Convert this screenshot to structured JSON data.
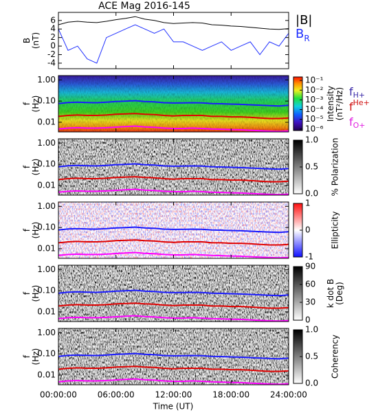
{
  "title": "ACE Mag 2016-145",
  "x_axis": {
    "label": "Time (UT)",
    "xlim": [
      0,
      24
    ],
    "xticks": [
      {
        "value": 0,
        "label": "00:00:00"
      },
      {
        "value": 6,
        "label": "06:00:00"
      },
      {
        "value": 12,
        "label": "12:00:00"
      },
      {
        "value": 18,
        "label": "18:00:00"
      },
      {
        "value": 24,
        "label": "24:00:00"
      }
    ]
  },
  "chart_data": [
    {
      "type": "line",
      "ylabel": [
        "B",
        "(nT)"
      ],
      "ylim": [
        -5.3,
        7.9
      ],
      "yticks": [
        -4,
        -2,
        0,
        2,
        4,
        6
      ],
      "x": [
        0,
        1,
        2,
        3,
        4,
        5,
        6,
        7,
        8,
        9,
        10,
        11,
        12,
        13,
        14,
        15,
        16,
        17,
        18,
        19,
        20,
        21,
        22,
        23,
        24
      ],
      "series": [
        {
          "name": "|B|",
          "color": "#000000",
          "values": [
            5.0,
            5.6,
            5.8,
            5.6,
            5.5,
            5.8,
            6.2,
            6.5,
            6.9,
            6.3,
            6.0,
            5.5,
            5.3,
            5.4,
            5.5,
            5.4,
            5.0,
            4.9,
            4.7,
            4.6,
            4.4,
            4.2,
            4.0,
            3.9,
            4.1
          ]
        },
        {
          "name": "B",
          "subscript": "R",
          "color": "#1f2fff",
          "values": [
            4,
            -1,
            0,
            -3,
            -4,
            2,
            3,
            4,
            5,
            4,
            3,
            4,
            1,
            1,
            0,
            -1,
            0,
            1,
            -1,
            0,
            1,
            -2,
            1,
            0,
            3
          ]
        }
      ]
    },
    {
      "type": "spectrogram",
      "ylabel": [
        "f",
        "(Hz)"
      ],
      "log_y": true,
      "ylim": [
        0.0035,
        1.6
      ],
      "yticks": [
        {
          "value": 1,
          "label": "1.00"
        },
        {
          "value": 0.1,
          "label": "0.10"
        },
        {
          "value": 0.01,
          "label": "0.01"
        }
      ],
      "colormap": "rainbow",
      "colorbar_label": [
        "Intensity",
        "(nT²/Hz)"
      ],
      "colorbar_log": true,
      "clim": [
        7e-07,
        0.23
      ],
      "colorbar_ticks": [
        {
          "value": 0.1,
          "label": "10⁻¹"
        },
        {
          "value": 0.01,
          "label": "10⁻²"
        },
        {
          "value": 0.001,
          "label": "10⁻³"
        },
        {
          "value": 0.0001,
          "label": "10⁻⁴"
        },
        {
          "value": 1e-05,
          "label": "10⁻⁵"
        },
        {
          "value": 1e-06,
          "label": "10⁻⁶"
        }
      ],
      "legend": true,
      "x": [
        0,
        1,
        2,
        3,
        4,
        5,
        6,
        7,
        8,
        9,
        10,
        11,
        12,
        13,
        14,
        15,
        16,
        17,
        18,
        19,
        20,
        21,
        22,
        23,
        24
      ],
      "series": [
        {
          "name": "f",
          "subscript": "H+",
          "color": "#1a1aff",
          "legend_color": "#3a2aa8",
          "values": [
            0.076,
            0.085,
            0.088,
            0.085,
            0.084,
            0.088,
            0.095,
            0.099,
            0.105,
            0.096,
            0.092,
            0.084,
            0.081,
            0.082,
            0.084,
            0.082,
            0.076,
            0.075,
            0.072,
            0.07,
            0.067,
            0.064,
            0.061,
            0.059,
            0.063
          ]
        },
        {
          "name": "f",
          "superscript": "He+",
          "color": "#e00000",
          "legend_color": "#d01010",
          "values": [
            0.019,
            0.021,
            0.022,
            0.021,
            0.021,
            0.022,
            0.024,
            0.025,
            0.026,
            0.024,
            0.023,
            0.021,
            0.02,
            0.021,
            0.021,
            0.021,
            0.019,
            0.019,
            0.018,
            0.018,
            0.017,
            0.016,
            0.015,
            0.015,
            0.016
          ]
        },
        {
          "name": "f",
          "subscript": "O+",
          "color": "#ff00ff",
          "legend_color": "#e020e0",
          "values": [
            0.0048,
            0.0053,
            0.0055,
            0.0053,
            0.0053,
            0.0055,
            0.0059,
            0.0062,
            0.0066,
            0.006,
            0.0058,
            0.0053,
            0.0051,
            0.0051,
            0.0053,
            0.0051,
            0.0048,
            0.0047,
            0.0045,
            0.0044,
            0.0042,
            0.004,
            0.0038,
            0.0037,
            0.0039
          ]
        }
      ]
    },
    {
      "type": "spectrogram",
      "ylabel": [
        "f",
        "(Hz)"
      ],
      "log_y": true,
      "ylim": [
        0.0035,
        1.6
      ],
      "yticks": [
        {
          "value": 1,
          "label": "1.00"
        },
        {
          "value": 0.1,
          "label": "0.10"
        },
        {
          "value": 0.01,
          "label": "0.01"
        }
      ],
      "colormap": "gray",
      "colorbar_label": [
        "% Polarization"
      ],
      "clim": [
        0,
        1
      ],
      "colorbar_ticks": [
        {
          "value": 0,
          "label": "0.0"
        },
        {
          "value": 0.5,
          "label": "0.5"
        },
        {
          "value": 1,
          "label": "1.0"
        }
      ],
      "legend": false,
      "x": [
        0,
        1,
        2,
        3,
        4,
        5,
        6,
        7,
        8,
        9,
        10,
        11,
        12,
        13,
        14,
        15,
        16,
        17,
        18,
        19,
        20,
        21,
        22,
        23,
        24
      ],
      "series": [
        {
          "name": "f",
          "subscript": "H+",
          "color": "#1a1aff",
          "values": [
            0.076,
            0.085,
            0.088,
            0.085,
            0.084,
            0.088,
            0.095,
            0.099,
            0.105,
            0.096,
            0.092,
            0.084,
            0.081,
            0.082,
            0.084,
            0.082,
            0.076,
            0.075,
            0.072,
            0.07,
            0.067,
            0.064,
            0.061,
            0.059,
            0.063
          ]
        },
        {
          "name": "f",
          "superscript": "He+",
          "color": "#e00000",
          "values": [
            0.019,
            0.021,
            0.022,
            0.021,
            0.021,
            0.022,
            0.024,
            0.025,
            0.026,
            0.024,
            0.023,
            0.021,
            0.02,
            0.021,
            0.021,
            0.021,
            0.019,
            0.019,
            0.018,
            0.018,
            0.017,
            0.016,
            0.015,
            0.015,
            0.016
          ]
        },
        {
          "name": "f",
          "subscript": "O+",
          "color": "#ff00ff",
          "values": [
            0.0048,
            0.0053,
            0.0055,
            0.0053,
            0.0053,
            0.0055,
            0.0059,
            0.0062,
            0.0066,
            0.006,
            0.0058,
            0.0053,
            0.0051,
            0.0051,
            0.0053,
            0.0051,
            0.0048,
            0.0047,
            0.0045,
            0.0044,
            0.0042,
            0.004,
            0.0038,
            0.0037,
            0.0039
          ]
        }
      ]
    },
    {
      "type": "spectrogram",
      "ylabel": [
        "f",
        "(Hz)"
      ],
      "log_y": true,
      "ylim": [
        0.0035,
        1.6
      ],
      "yticks": [
        {
          "value": 1,
          "label": "1.00"
        },
        {
          "value": 0.1,
          "label": "0.10"
        },
        {
          "value": 0.01,
          "label": "0.01"
        }
      ],
      "colormap": "bwr",
      "colorbar_label": [
        "Ellipticity"
      ],
      "clim": [
        -1,
        1
      ],
      "colorbar_ticks": [
        -1,
        0,
        1
      ],
      "legend": false,
      "x": [
        0,
        1,
        2,
        3,
        4,
        5,
        6,
        7,
        8,
        9,
        10,
        11,
        12,
        13,
        14,
        15,
        16,
        17,
        18,
        19,
        20,
        21,
        22,
        23,
        24
      ],
      "series": [
        {
          "name": "f",
          "subscript": "H+",
          "color": "#1a1aff",
          "values": [
            0.076,
            0.085,
            0.088,
            0.085,
            0.084,
            0.088,
            0.095,
            0.099,
            0.105,
            0.096,
            0.092,
            0.084,
            0.081,
            0.082,
            0.084,
            0.082,
            0.076,
            0.075,
            0.072,
            0.07,
            0.067,
            0.064,
            0.061,
            0.059,
            0.063
          ]
        },
        {
          "name": "f",
          "superscript": "He+",
          "color": "#e00000",
          "values": [
            0.019,
            0.021,
            0.022,
            0.021,
            0.021,
            0.022,
            0.024,
            0.025,
            0.026,
            0.024,
            0.023,
            0.021,
            0.02,
            0.021,
            0.021,
            0.021,
            0.019,
            0.019,
            0.018,
            0.018,
            0.017,
            0.016,
            0.015,
            0.015,
            0.016
          ]
        },
        {
          "name": "f",
          "subscript": "O+",
          "color": "#ff00ff",
          "values": [
            0.0048,
            0.0053,
            0.0055,
            0.0053,
            0.0053,
            0.0055,
            0.0059,
            0.0062,
            0.0066,
            0.006,
            0.0058,
            0.0053,
            0.0051,
            0.0051,
            0.0053,
            0.0051,
            0.0048,
            0.0047,
            0.0045,
            0.0044,
            0.0042,
            0.004,
            0.0038,
            0.0037,
            0.0039
          ]
        }
      ]
    },
    {
      "type": "spectrogram",
      "ylabel": [
        "f",
        "(Hz)"
      ],
      "log_y": true,
      "ylim": [
        0.0035,
        1.6
      ],
      "yticks": [
        {
          "value": 1,
          "label": "1.00"
        },
        {
          "value": 0.1,
          "label": "0.10"
        },
        {
          "value": 0.01,
          "label": "0.01"
        }
      ],
      "colormap": "gray",
      "colorbar_label": [
        "k dot B",
        "(Deg)"
      ],
      "clim": [
        0,
        90
      ],
      "colorbar_ticks": [
        0,
        30,
        60,
        90
      ],
      "legend": false,
      "x": [
        0,
        1,
        2,
        3,
        4,
        5,
        6,
        7,
        8,
        9,
        10,
        11,
        12,
        13,
        14,
        15,
        16,
        17,
        18,
        19,
        20,
        21,
        22,
        23,
        24
      ],
      "series": [
        {
          "name": "f",
          "subscript": "H+",
          "color": "#1a1aff",
          "values": [
            0.076,
            0.085,
            0.088,
            0.085,
            0.084,
            0.088,
            0.095,
            0.099,
            0.105,
            0.096,
            0.092,
            0.084,
            0.081,
            0.082,
            0.084,
            0.082,
            0.076,
            0.075,
            0.072,
            0.07,
            0.067,
            0.064,
            0.061,
            0.059,
            0.063
          ]
        },
        {
          "name": "f",
          "superscript": "He+",
          "color": "#e00000",
          "values": [
            0.019,
            0.021,
            0.022,
            0.021,
            0.021,
            0.022,
            0.024,
            0.025,
            0.026,
            0.024,
            0.023,
            0.021,
            0.02,
            0.021,
            0.021,
            0.021,
            0.019,
            0.019,
            0.018,
            0.018,
            0.017,
            0.016,
            0.015,
            0.015,
            0.016
          ]
        },
        {
          "name": "f",
          "subscript": "O+",
          "color": "#ff00ff",
          "values": [
            0.0048,
            0.0053,
            0.0055,
            0.0053,
            0.0053,
            0.0055,
            0.0059,
            0.0062,
            0.0066,
            0.006,
            0.0058,
            0.0053,
            0.0051,
            0.0051,
            0.0053,
            0.0051,
            0.0048,
            0.0047,
            0.0045,
            0.0044,
            0.0042,
            0.004,
            0.0038,
            0.0037,
            0.0039
          ]
        }
      ]
    },
    {
      "type": "spectrogram",
      "ylabel": [
        "f",
        "(Hz)"
      ],
      "log_y": true,
      "ylim": [
        0.0035,
        1.6
      ],
      "yticks": [
        {
          "value": 1,
          "label": "1.00"
        },
        {
          "value": 0.1,
          "label": "0.10"
        },
        {
          "value": 0.01,
          "label": "0.01"
        }
      ],
      "colormap": "gray",
      "colorbar_label": [
        "Coherency"
      ],
      "clim": [
        0,
        1
      ],
      "colorbar_ticks": [
        {
          "value": 0,
          "label": "0.0"
        },
        {
          "value": 0.5,
          "label": "0.5"
        },
        {
          "value": 1,
          "label": "1.0"
        }
      ],
      "legend": false,
      "x": [
        0,
        1,
        2,
        3,
        4,
        5,
        6,
        7,
        8,
        9,
        10,
        11,
        12,
        13,
        14,
        15,
        16,
        17,
        18,
        19,
        20,
        21,
        22,
        23,
        24
      ],
      "series": [
        {
          "name": "f",
          "subscript": "H+",
          "color": "#1a1aff",
          "values": [
            0.076,
            0.085,
            0.088,
            0.085,
            0.084,
            0.088,
            0.095,
            0.099,
            0.105,
            0.096,
            0.092,
            0.084,
            0.081,
            0.082,
            0.084,
            0.082,
            0.076,
            0.075,
            0.072,
            0.07,
            0.067,
            0.064,
            0.061,
            0.059,
            0.063
          ]
        },
        {
          "name": "f",
          "superscript": "He+",
          "color": "#e00000",
          "values": [
            0.019,
            0.021,
            0.022,
            0.021,
            0.021,
            0.022,
            0.024,
            0.025,
            0.026,
            0.024,
            0.023,
            0.021,
            0.02,
            0.021,
            0.021,
            0.021,
            0.019,
            0.019,
            0.018,
            0.018,
            0.017,
            0.016,
            0.015,
            0.015,
            0.016
          ]
        },
        {
          "name": "f",
          "subscript": "O+",
          "color": "#ff00ff",
          "values": [
            0.0048,
            0.0053,
            0.0055,
            0.0053,
            0.0053,
            0.0055,
            0.0059,
            0.0062,
            0.0066,
            0.006,
            0.0058,
            0.0053,
            0.0051,
            0.0051,
            0.0053,
            0.0051,
            0.0048,
            0.0047,
            0.0045,
            0.0044,
            0.0042,
            0.004,
            0.0038,
            0.0037,
            0.0039
          ]
        }
      ]
    }
  ]
}
